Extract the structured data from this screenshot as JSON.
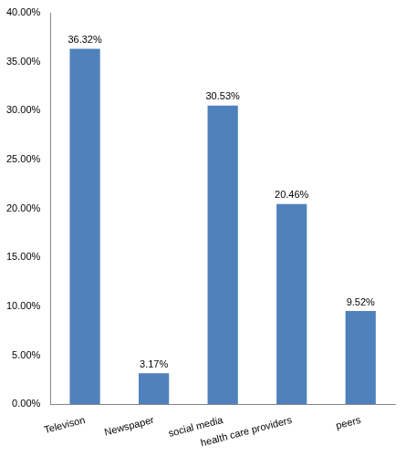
{
  "chart_data": {
    "type": "bar",
    "categories": [
      "Televison",
      "Newspaper",
      "social media",
      "health care providers",
      "peers"
    ],
    "values": [
      36.32,
      3.17,
      30.53,
      20.46,
      9.52
    ],
    "value_labels": [
      "36.32%",
      "3.17%",
      "30.53%",
      "20.46%",
      "9.52%"
    ],
    "data_labels": true,
    "color": "#4f81bd",
    "ylim": [
      0,
      40
    ],
    "yticks": [
      {
        "value": 0,
        "label": "0.00%"
      },
      {
        "value": 5,
        "label": "5.00%"
      },
      {
        "value": 10,
        "label": "10.00%"
      },
      {
        "value": 15,
        "label": "15.00%"
      },
      {
        "value": 20,
        "label": "20.00%"
      },
      {
        "value": 25,
        "label": "25.00%"
      },
      {
        "value": 30,
        "label": "30.00%"
      },
      {
        "value": 35,
        "label": "35.00%"
      },
      {
        "value": 40,
        "label": "40.00%"
      }
    ],
    "grid": false
  }
}
